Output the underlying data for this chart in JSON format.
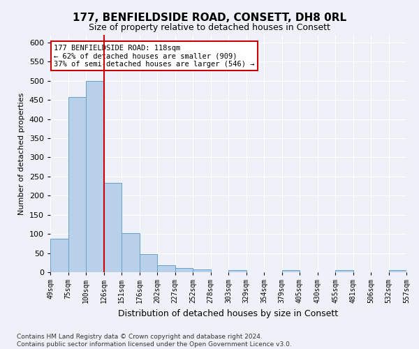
{
  "title": "177, BENFIELDSIDE ROAD, CONSETT, DH8 0RL",
  "subtitle": "Size of property relative to detached houses in Consett",
  "xlabel": "Distribution of detached houses by size in Consett",
  "ylabel": "Number of detached properties",
  "footer_line1": "Contains HM Land Registry data © Crown copyright and database right 2024.",
  "footer_line2": "Contains public sector information licensed under the Open Government Licence v3.0.",
  "annotation_line1": "177 BENFIELDSIDE ROAD: 118sqm",
  "annotation_line2": "← 62% of detached houses are smaller (909)",
  "annotation_line3": "37% of semi-detached houses are larger (546) →",
  "bar_heights": [
    88,
    458,
    500,
    233,
    103,
    47,
    18,
    11,
    7,
    0,
    5,
    0,
    0,
    5,
    0,
    0,
    5,
    0,
    0,
    5
  ],
  "bar_color": "#b8d0ea",
  "bar_edge_color": "#6b9fc8",
  "vline_bar_index": 3,
  "vline_color": "#cc0000",
  "ylim": [
    0,
    620
  ],
  "yticks": [
    0,
    50,
    100,
    150,
    200,
    250,
    300,
    350,
    400,
    450,
    500,
    550,
    600
  ],
  "tick_labels": [
    "49sqm",
    "75sqm",
    "100sqm",
    "126sqm",
    "151sqm",
    "176sqm",
    "202sqm",
    "227sqm",
    "252sqm",
    "278sqm",
    "303sqm",
    "329sqm",
    "354sqm",
    "379sqm",
    "405sqm",
    "430sqm",
    "455sqm",
    "481sqm",
    "506sqm",
    "532sqm",
    "557sqm"
  ],
  "background_color": "#eef2f8",
  "grid_color": "#ffffff",
  "annotation_box_facecolor": "#ffffff",
  "annotation_box_edgecolor": "#cc0000",
  "title_fontsize": 11,
  "subtitle_fontsize": 9,
  "ylabel_fontsize": 8,
  "xlabel_fontsize": 9,
  "ytick_fontsize": 8,
  "xtick_fontsize": 7,
  "footer_fontsize": 6.5
}
